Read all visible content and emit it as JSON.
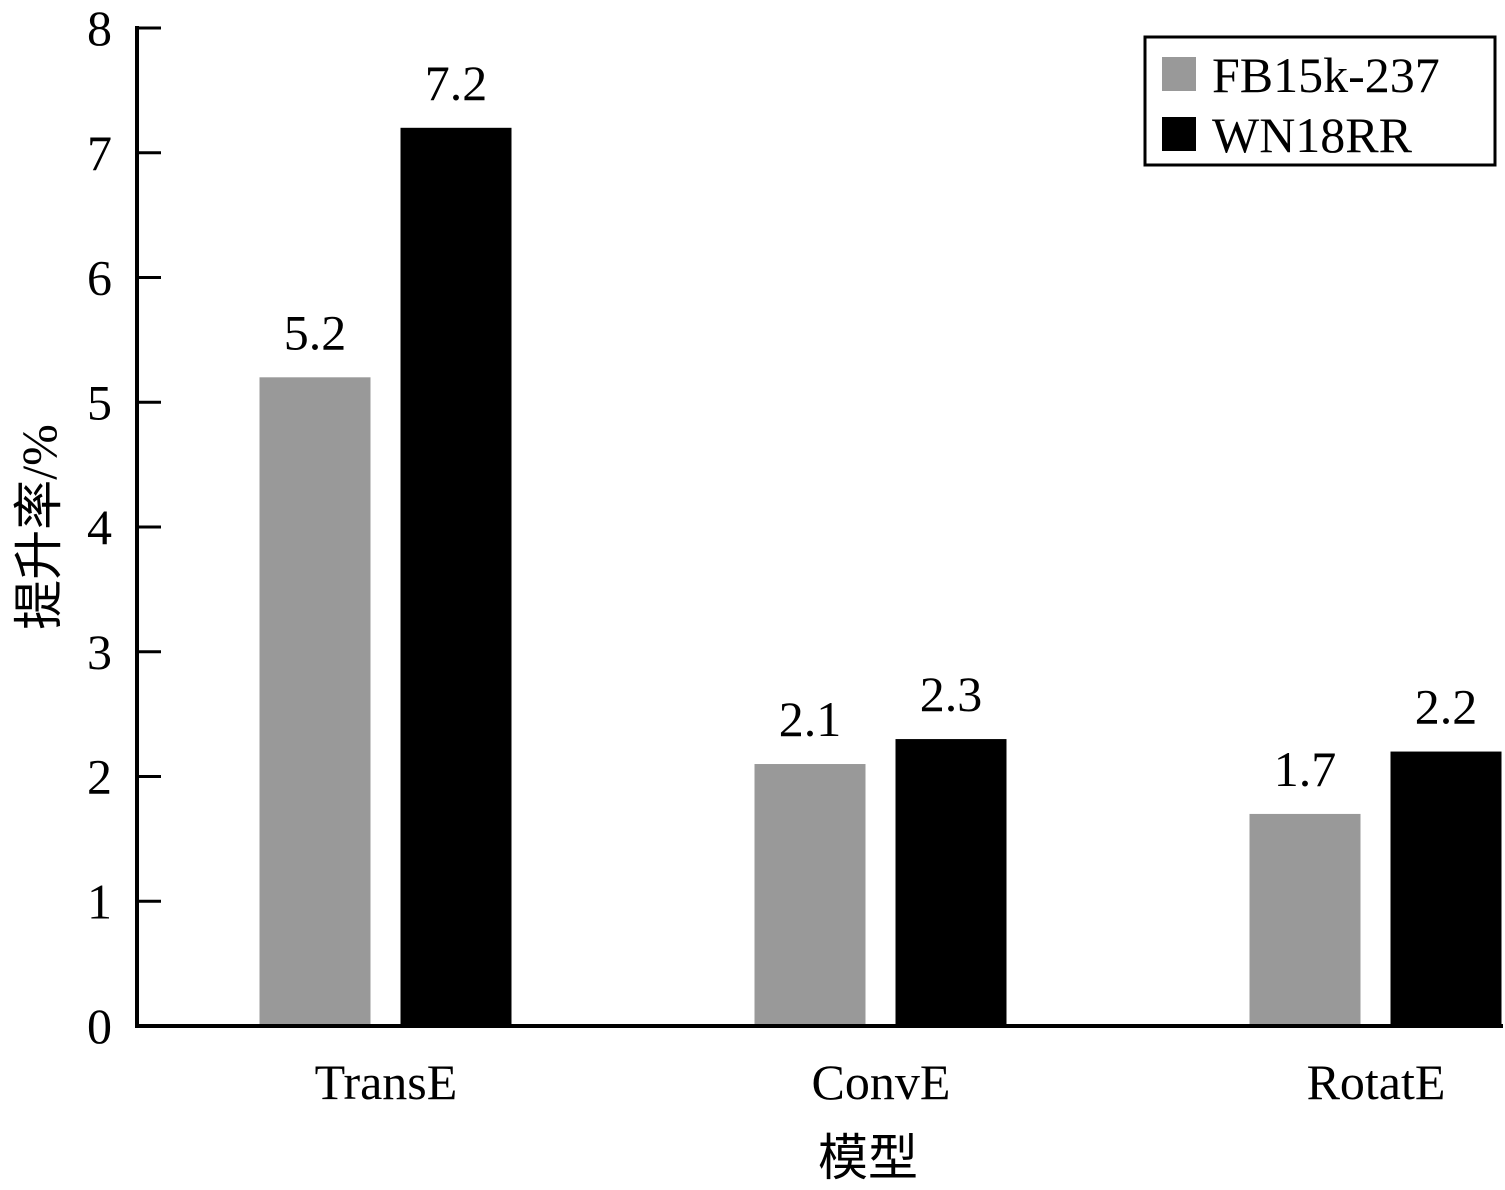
{
  "chart_data": {
    "type": "bar",
    "xlabel": "模型",
    "ylabel": "提升率/%",
    "categories": [
      "TransE",
      "ConvE",
      "RotatE"
    ],
    "series": [
      {
        "name": "FB15k-237",
        "values": [
          5.2,
          2.1,
          1.7
        ],
        "color": "#999999"
      },
      {
        "name": "WN18RR",
        "values": [
          7.2,
          2.3,
          2.2
        ],
        "color": "#000000"
      }
    ],
    "ylim": [
      0,
      8
    ],
    "yticks": [
      0,
      1,
      2,
      3,
      4,
      5,
      6,
      7,
      8
    ],
    "value_labels": [
      [
        "5.2",
        "2.1",
        "1.7"
      ],
      [
        "7.2",
        "2.3",
        "2.2"
      ]
    ],
    "grid": false,
    "legend_position": "top-right"
  }
}
